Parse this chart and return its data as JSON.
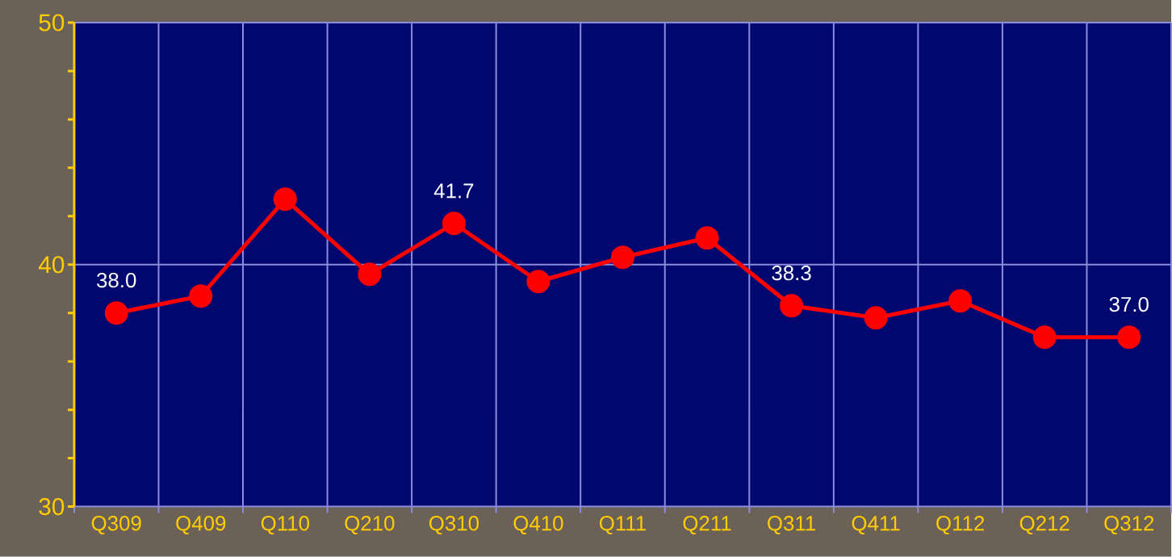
{
  "chart_data": {
    "type": "line",
    "categories": [
      "Q309",
      "Q409",
      "Q110",
      "Q210",
      "Q310",
      "Q410",
      "Q111",
      "Q211",
      "Q311",
      "Q411",
      "Q112",
      "Q212",
      "Q312"
    ],
    "series": [
      {
        "color": "#ff0000",
        "values": [
          38.0,
          38.7,
          42.7,
          39.6,
          41.7,
          39.3,
          40.3,
          41.1,
          38.3,
          37.8,
          38.5,
          37.0,
          37.0
        ],
        "value_labels": [
          "38.0",
          null,
          null,
          null,
          "41.7",
          null,
          null,
          null,
          "38.3",
          null,
          null,
          null,
          "37.0"
        ]
      }
    ],
    "ylim": [
      30,
      50
    ],
    "yticks": [
      30,
      {
        "value": 32,
        "label": null
      },
      {
        "value": 34,
        "label": null
      },
      {
        "value": 36,
        "label": null
      },
      {
        "value": 38,
        "label": null
      },
      40,
      {
        "value": 42,
        "label": null
      },
      {
        "value": 44,
        "label": null
      },
      {
        "value": 46,
        "label": null
      },
      {
        "value": 48,
        "label": null
      },
      50
    ],
    "grid": true,
    "marker": "circle",
    "line_style": "solid"
  }
}
